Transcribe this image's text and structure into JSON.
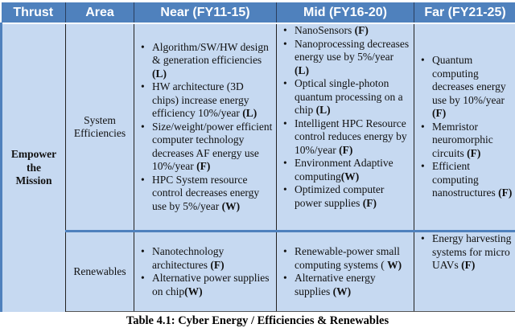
{
  "headers": [
    "Thrust",
    "Area",
    "Near (FY11-15)",
    "Mid (FY16-20)",
    "Far (FY21-25)"
  ],
  "thrust": [
    "Empower",
    "the",
    "Mission"
  ],
  "rows": [
    {
      "area": [
        "System",
        "Efficiencies"
      ],
      "near": [
        {
          "text": "Algorithm/SW/HW design & generation efficiencies ",
          "code": "(L)"
        },
        {
          "text": "HW architecture (3D chips)  increase energy efficiency 10%/year ",
          "code": "(L)"
        },
        {
          "text": "Size/weight/power efficient computer technology decreases AF energy use 10%/year ",
          "code": "(F)"
        },
        {
          "text": "HPC System resource control decreases energy use by 5%/year ",
          "code": "(W)"
        }
      ],
      "mid": [
        {
          "text": "NanoSensors ",
          "code": "(F)"
        },
        {
          "text": "Nanoprocessing decreases energy use by 5%/year ",
          "code": "(L)"
        },
        {
          "text": "Optical single-photon quantum processing on a chip ",
          "code": "(L)"
        },
        {
          "text": "Intelligent HPC Resource control reduces energy by 10%/year ",
          "code": "(F)"
        },
        {
          "text": "Environment Adaptive computing",
          "code": "(W)"
        },
        {
          "text": "Optimized computer power supplies ",
          "code": "(F)"
        }
      ],
      "far": [
        {
          "text": "Quantum computing decreases energy use by 10%/year ",
          "code": "(F)"
        },
        {
          "text": "Memristor neuromorphic circuits  ",
          "code": "(F)"
        },
        {
          "text": "Efficient computing nanostructures ",
          "code": "(F)"
        }
      ]
    },
    {
      "area": [
        "Renewables"
      ],
      "near": [
        {
          "text": "Nanotechnology architectures   ",
          "code": "(F)"
        },
        {
          "text": "Alternative power supplies on chip",
          "code": "(W)"
        }
      ],
      "mid": [
        {
          "text": "Renewable-power small computing systems ( ",
          "code": "W)"
        },
        {
          "text": "Alternative energy supplies ",
          "code": "(W)"
        }
      ],
      "far": [
        {
          "text": "Energy harvesting systems for micro UAVs ",
          "code": "(F)"
        }
      ]
    }
  ],
  "caption": "Table 4.1:  Cyber Energy / Efficiencies & Renewables",
  "colors": {
    "header": "#4f81bd",
    "cell": "#c6d9f1"
  }
}
